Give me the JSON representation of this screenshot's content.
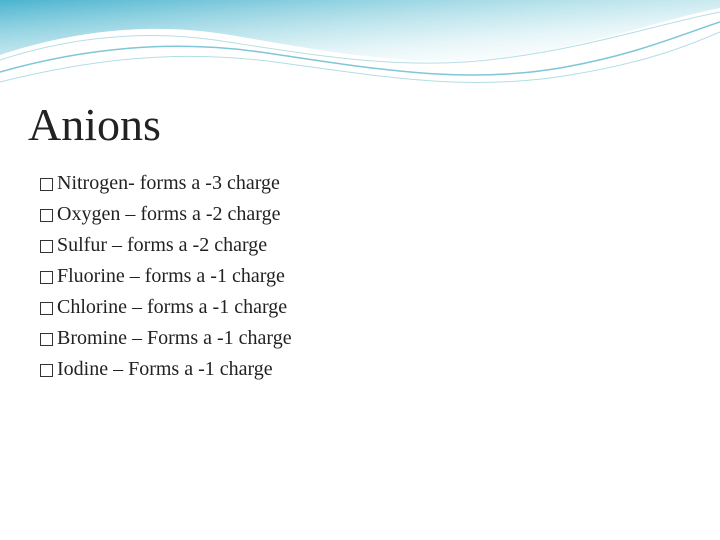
{
  "slide": {
    "title": "Anions",
    "bullets": [
      {
        "text": "Nitrogen- forms a -3 charge"
      },
      {
        "text": "Oxygen – forms a -2 charge"
      },
      {
        "text": "Sulfur – forms a -2 charge"
      },
      {
        "text": "Fluorine – forms a -1 charge"
      },
      {
        "text": "Chlorine – forms a -1 charge"
      },
      {
        "text": "Bromine – Forms a -1 charge"
      },
      {
        "text": "Iodine – Forms a -1 charge"
      }
    ]
  },
  "style": {
    "title_fontsize": 46,
    "bullet_fontsize": 20,
    "bullet_color": "#222222",
    "title_color": "#222222",
    "background_color": "#ffffff",
    "wave_colors": {
      "grad_start": "#2aa6c6",
      "grad_end": "#ffffff",
      "line1": "#5fb8cc",
      "line2": "#7fc6d6"
    }
  }
}
